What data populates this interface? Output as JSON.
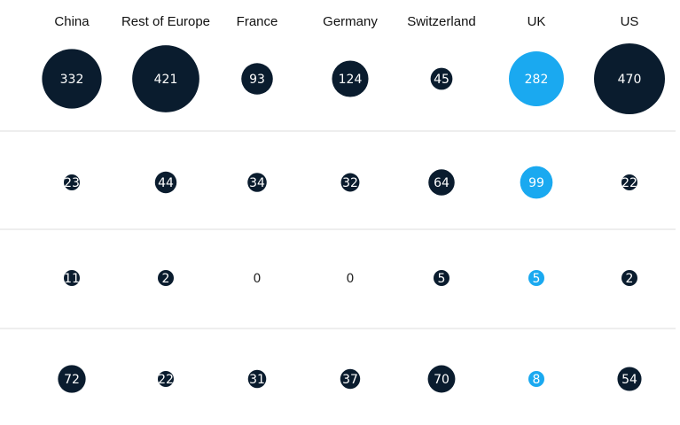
{
  "chart_data": {
    "type": "bubble-matrix",
    "categories": [
      "China",
      "Rest of Europe",
      "France",
      "Germany",
      "Switzerland",
      "UK",
      "US"
    ],
    "rows": [
      {
        "values": [
          332,
          421,
          93,
          124,
          45,
          282,
          470
        ]
      },
      {
        "values": [
          23,
          44,
          34,
          32,
          64,
          99,
          22
        ]
      },
      {
        "values": [
          11,
          2,
          0,
          0,
          5,
          5,
          2
        ]
      },
      {
        "values": [
          72,
          22,
          31,
          37,
          70,
          8,
          54
        ]
      }
    ],
    "highlight_category": "UK",
    "grid": "horizontal row separators",
    "legend": "none"
  },
  "colors": {
    "bubble": "#0a1c2e",
    "highlight": "#1aa9f0",
    "bubble_text": "#ffffff",
    "zero_text": "#222222",
    "separator": "#dcdcdc"
  }
}
